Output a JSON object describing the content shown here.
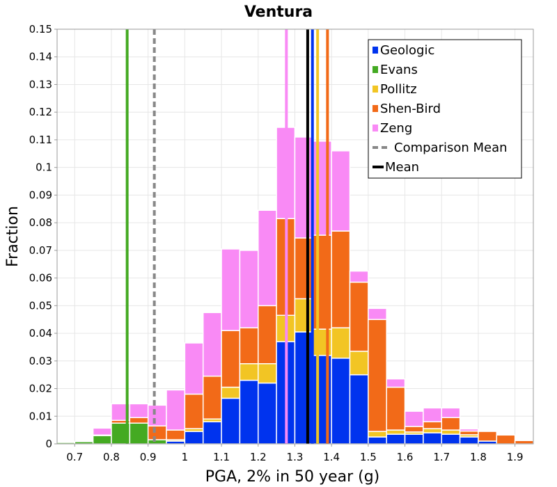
{
  "chart_data": {
    "type": "bar",
    "stacked": true,
    "title": "Ventura",
    "xlabel": "PGA, 2% in 50 year (g)",
    "ylabel": "Fraction",
    "xlim": [
      0.652,
      1.95
    ],
    "ylim": [
      0,
      0.15
    ],
    "bin_width": 0.05,
    "grid": true,
    "legend_position": "top-right",
    "x_ticks": [
      "0.7",
      "0.8",
      "0.9",
      "1",
      "1.1",
      "1.2",
      "1.3",
      "1.4",
      "1.5",
      "1.6",
      "1.7",
      "1.8",
      "1.9"
    ],
    "x_tick_values": [
      0.7,
      0.8,
      0.9,
      1.0,
      1.1,
      1.2,
      1.3,
      1.4,
      1.5,
      1.6,
      1.7,
      1.8,
      1.9
    ],
    "y_ticks": [
      "0",
      "0.01",
      "0.02",
      "0.03",
      "0.04",
      "0.05",
      "0.06",
      "0.07",
      "0.08",
      "0.09",
      "0.1",
      "0.11",
      "0.12",
      "0.13",
      "0.14",
      "0.15"
    ],
    "y_tick_values": [
      0,
      0.01,
      0.02,
      0.03,
      0.04,
      0.05,
      0.06,
      0.07,
      0.08,
      0.09,
      0.1,
      0.11,
      0.12,
      0.13,
      0.14,
      0.15
    ],
    "bin_centers": [
      0.675,
      0.725,
      0.775,
      0.825,
      0.875,
      0.925,
      0.975,
      1.025,
      1.075,
      1.125,
      1.175,
      1.225,
      1.275,
      1.325,
      1.375,
      1.425,
      1.475,
      1.525,
      1.575,
      1.625,
      1.675,
      1.725,
      1.775,
      1.825,
      1.875,
      1.925
    ],
    "series": [
      {
        "name": "Geologic",
        "color": "#0033ee",
        "values": [
          0,
          0,
          0,
          0,
          0,
          0,
          0.001,
          0.0045,
          0.008,
          0.0165,
          0.023,
          0.022,
          0.037,
          0.0405,
          0.032,
          0.031,
          0.025,
          0.0025,
          0.0035,
          0.0035,
          0.004,
          0.0035,
          0.0025,
          0.001,
          0,
          0
        ]
      },
      {
        "name": "Evans",
        "color": "#44aa22",
        "values": [
          0.0005,
          0.0008,
          0.003,
          0.0075,
          0.0075,
          0.0015,
          0,
          0,
          0,
          0,
          0,
          0,
          0,
          0,
          0,
          0,
          0,
          0,
          0,
          0,
          0,
          0,
          0,
          0,
          0,
          0
        ]
      },
      {
        "name": "Pollitz",
        "color": "#f2c524",
        "values": [
          0,
          0,
          0,
          0,
          0,
          0,
          0.0005,
          0.001,
          0.001,
          0.004,
          0.006,
          0.007,
          0.0095,
          0.012,
          0.0095,
          0.011,
          0.0085,
          0.002,
          0.0015,
          0.0008,
          0.0015,
          0.0015,
          0.0008,
          0,
          0,
          0
        ]
      },
      {
        "name": "Shen-Bird",
        "color": "#f26a18",
        "values": [
          0,
          0,
          0.0002,
          0.001,
          0.002,
          0.005,
          0.0035,
          0.0125,
          0.0155,
          0.0205,
          0.013,
          0.021,
          0.035,
          0.022,
          0.034,
          0.035,
          0.025,
          0.0405,
          0.0155,
          0.002,
          0.0025,
          0.0045,
          0.0013,
          0.0035,
          0.0032,
          0.0012
        ]
      },
      {
        "name": "Zeng",
        "color": "#f98af5",
        "values": [
          0,
          0,
          0.0025,
          0.006,
          0.005,
          0.0075,
          0.0145,
          0.0185,
          0.023,
          0.0295,
          0.028,
          0.0345,
          0.033,
          0.0365,
          0.034,
          0.029,
          0.004,
          0.004,
          0.003,
          0.0055,
          0.005,
          0.0035,
          0.0008,
          0,
          0,
          0
        ]
      }
    ],
    "vertical_lines": [
      {
        "series": "Evans",
        "x": 0.843,
        "color": "#44aa22",
        "style": "solid"
      },
      {
        "series": "Comparison Mean",
        "x": 0.917,
        "color": "#888888",
        "style": "dashed"
      },
      {
        "series": "Zeng",
        "x": 1.277,
        "color": "#f98af5",
        "style": "solid"
      },
      {
        "series": "Mean",
        "x": 1.335,
        "color": "#000000",
        "style": "solid"
      },
      {
        "series": "Geologic",
        "x": 1.348,
        "color": "#0033ee",
        "style": "solid"
      },
      {
        "series": "Pollitz",
        "x": 1.362,
        "color": "#f2c524",
        "style": "solid"
      },
      {
        "series": "Shen-Bird",
        "x": 1.389,
        "color": "#f26a18",
        "style": "solid"
      }
    ],
    "legend": [
      {
        "label": "Geologic",
        "color": "#0033ee",
        "kind": "box"
      },
      {
        "label": "Evans",
        "color": "#44aa22",
        "kind": "box"
      },
      {
        "label": "Pollitz",
        "color": "#f2c524",
        "kind": "box"
      },
      {
        "label": "Shen-Bird",
        "color": "#f26a18",
        "kind": "box"
      },
      {
        "label": "Zeng",
        "color": "#f98af5",
        "kind": "box"
      },
      {
        "label": "Comparison Mean",
        "color": "#888888",
        "kind": "dashed"
      },
      {
        "label": "Mean",
        "color": "#000000",
        "kind": "line"
      }
    ]
  }
}
